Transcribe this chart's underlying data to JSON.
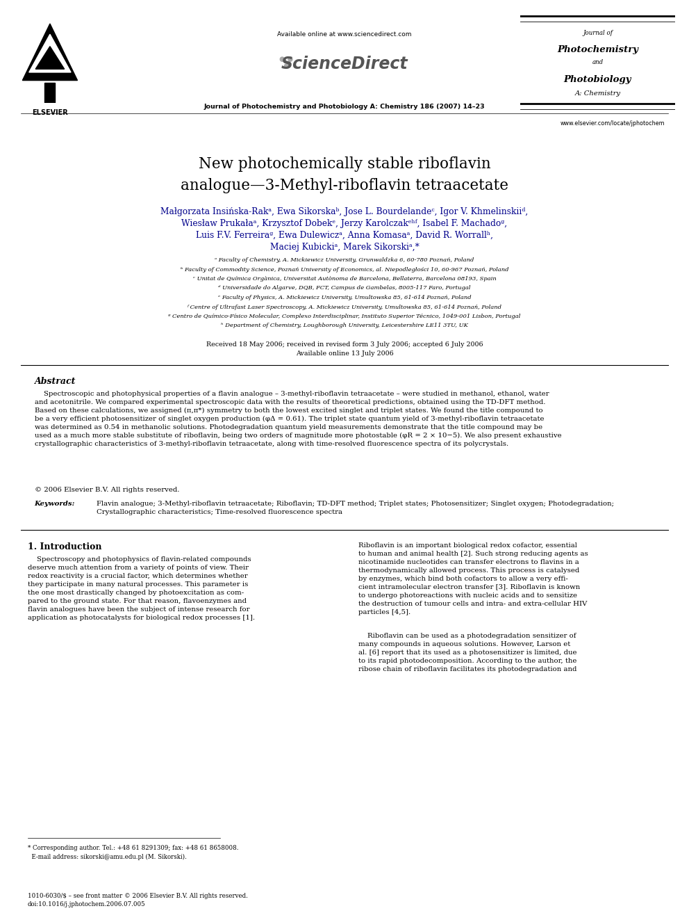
{
  "bg_color": "#ffffff",
  "page_width": 9.92,
  "page_height": 13.23,
  "header": {
    "available_text": "Available online at www.sciencedirect.com",
    "journal_line1": "Journal of Photochemistry and Photobiology A: Chemistry 186 (2007) 14–23",
    "website": "www.elsevier.com/locate/jphotochem"
  },
  "title": "New photochemically stable riboflavin\nanalogue—3-Methyl-riboflavin tetraacetate",
  "authors_line1": "Małgorzata Insińska-Rakᵃ, Ewa Sikorskaᵇ, Jose L. Bourdelandeᶜ, Igor V. Khmelinskiiᵈ,",
  "authors_line2": "Wiesław Prukałaᵃ, Krzysztof Dobekᵉ, Jerzy Karolczakᵉʰᶠ, Isabel F. Machadoᵍ,",
  "authors_line3": "Luis F.V. Ferreiraᵍ, Ewa Dulewiczᵃ, Anna Komasaᵃ, David R. Worrallʰ,",
  "authors_line4": "Maciej Kubickiᵃ, Marek Sikorskiᵃ,*",
  "affiliations": [
    "ᵃ Faculty of Chemistry, A. Mickiewicz University, Grunwaldzka 6, 60-780 Poznań, Poland",
    "ᵇ Faculty of Commodity Science, Poznań University of Economics, al. Niepodległości 10, 60-967 Poznań, Poland",
    "ᶜ Unitat de Química Orgànica, Universitat Autònoma de Barcelona, Bellaterra, Barcelona 08193, Spain",
    "ᵈ Universidade do Algarve, DQB, FCT, Campus de Gambelas, 8005-117 Faro, Portugal",
    "ᵉ Faculty of Physics, A. Mickiewicz University, Umultowska 85, 61-614 Poznań, Poland",
    "ᶠ Centre of Ultrafast Laser Spectroscopy, A. Mickiewicz University, Umultowska 85, 61-614 Poznań, Poland",
    "ᵍ Centro de Químico-Físico Molecular, Complexo Interdisciplinar, Instituto Superior Técnico, 1049-001 Lisbon, Portugal",
    "ʰ Department of Chemistry, Loughborough University, Leicestershire LE11 3TU, UK"
  ],
  "received_line1": "Received 18 May 2006; received in revised form 3 July 2006; accepted 6 July 2006",
  "received_line2": "Available online 13 July 2006",
  "abstract_title": "Abstract",
  "abstract_text": "    Spectroscopic and photophysical properties of a flavin analogue – 3-methyl-riboflavin tetraacetate – were studied in methanol, ethanol, water\nand acetonitrile. We compared experimental spectroscopic data with the results of theoretical predictions, obtained using the TD-DFT method.\nBased on these calculations, we assigned (π,π*) symmetry to both the lowest excited singlet and triplet states. We found the title compound to\nbe a very efficient photosensitizer of singlet oxygen production (φΔ = 0.61). The triplet state quantum yield of 3-methyl-riboflavin tetraacetate\nwas determined as 0.54 in methanolic solutions. Photodegradation quantum yield measurements demonstrate that the title compound may be\nused as a much more stable substitute of riboflavin, being two orders of magnitude more photostable (φR = 2 × 10−5). We also present exhaustive\ncrystallographic characteristics of 3-methyl-riboflavin tetraacetate, along with time-resolved fluorescence spectra of its polycrystals.",
  "copyright_text": "© 2006 Elsevier B.V. All rights reserved.",
  "keywords_label": "Keywords: ",
  "keywords_text": "Flavin analogue; 3-Methyl-riboflavin tetraacetate; Riboflavin; TD-DFT method; Triplet states; Photosensitizer; Singlet oxygen; Photodegradation;\nCrystallographic characteristics; Time-resolved fluorescence spectra",
  "section1_title": "1. Introduction",
  "section1_left_para": "    Spectroscopy and photophysics of flavin-related compounds\ndeserve much attention from a variety of points of view. Their\nredox reactivity is a crucial factor, which determines whether\nthey participate in many natural processes. This parameter is\nthe one most drastically changed by photoexcitation as com-\npared to the ground state. For that reason, flavoenzymes and\nflavin analogues have been the subject of intense research for\napplication as photocatalysts for biological redox processes [1].",
  "section1_right_para1": "Riboflavin is an important biological redox cofactor, essential\nto human and animal health [2]. Such strong reducing agents as\nnicotinamide nucleotides can transfer electrons to flavins in a\nthermodynamically allowed process. This process is catalysed\nby enzymes, which bind both cofactors to allow a very effi-\ncient intramolecular electron transfer [3]. Riboflavin is known\nto undergo photoreactions with nucleic acids and to sensitize\nthe destruction of tumour cells and intra- and extra-cellular HIV\nparticles [4,5].",
  "section1_right_para2": "    Riboflavin can be used as a photodegradation sensitizer of\nmany compounds in aqueous solutions. However, Larson et\nal. [6] report that its used as a photosensitizer is limited, due\nto its rapid photodecomposition. According to the author, the\nribose chain of riboflavin facilitates its photodegradation and",
  "footnote_star": "* Corresponding author. Tel.: +48 61 8291309; fax: +48 61 8658008.",
  "footnote_email": "  E-mail address: sikorski@amu.edu.pl (M. Sikorski).",
  "footnote_bottom1": "1010-6030/$ – see front matter © 2006 Elsevier B.V. All rights reserved.",
  "footnote_bottom2": "doi:10.1016/j.jphotochem.2006.07.005"
}
